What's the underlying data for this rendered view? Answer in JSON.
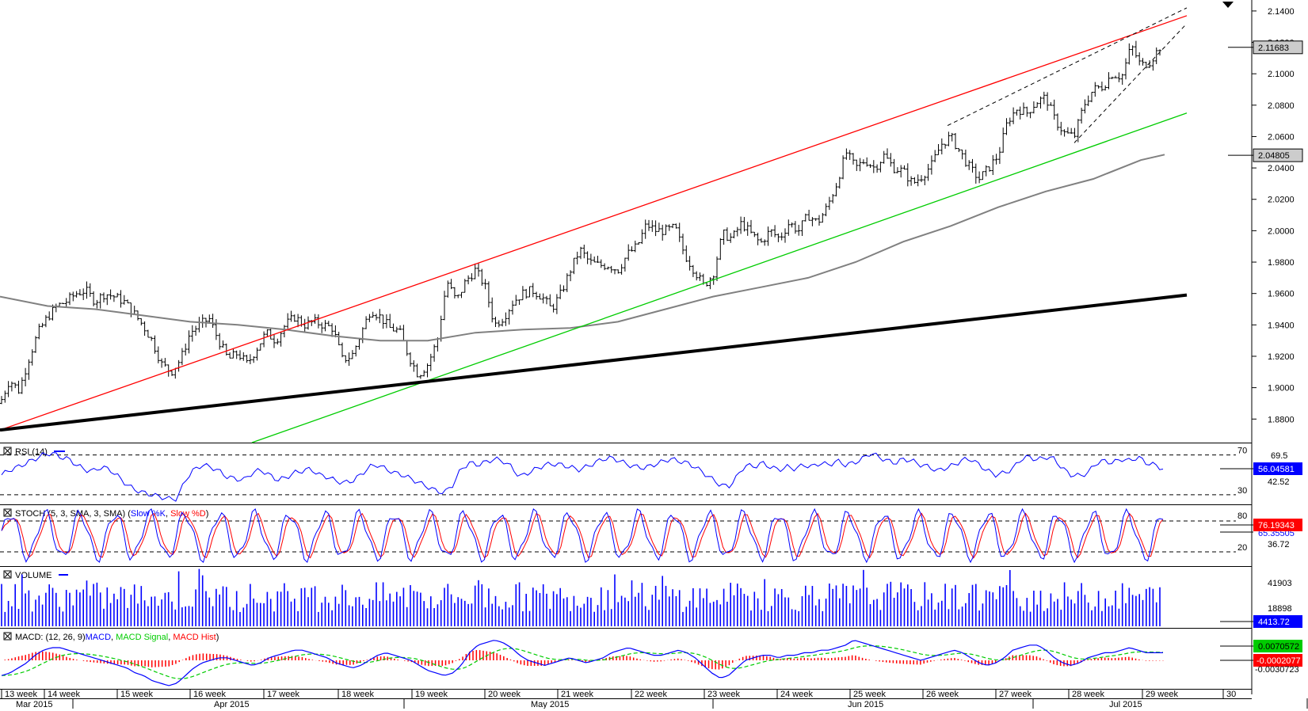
{
  "chart_data": [
    {
      "panel": "price",
      "type": "candlestick",
      "ylim": [
        1.865,
        2.147
      ],
      "y_ticks": [
        "2.1400",
        "2.1200",
        "2.1000",
        "2.0800",
        "2.0600",
        "2.0400",
        "2.0200",
        "2.0000",
        "1.9800",
        "1.9600",
        "1.9400",
        "1.9200",
        "1.9000",
        "1.8800"
      ],
      "y_tick_values": [
        2.14,
        2.12,
        2.1,
        2.08,
        2.06,
        2.04,
        2.02,
        2.0,
        1.98,
        1.96,
        1.94,
        1.92,
        1.9,
        1.88
      ],
      "price_box": {
        "value": "2.11683",
        "color": "#cccccc"
      },
      "ma_box": {
        "value": "2.04805",
        "color": "#cccccc"
      },
      "close_path": [
        [
          0,
          1.89
        ],
        [
          12,
          1.905
        ],
        [
          24,
          1.898
        ],
        [
          36,
          1.918
        ],
        [
          48,
          1.935
        ],
        [
          60,
          1.945
        ],
        [
          72,
          1.952
        ],
        [
          84,
          1.955
        ],
        [
          96,
          1.96
        ],
        [
          108,
          1.962
        ],
        [
          120,
          1.955
        ],
        [
          132,
          1.96
        ],
        [
          144,
          1.958
        ],
        [
          156,
          1.955
        ],
        [
          168,
          1.948
        ],
        [
          180,
          1.94
        ],
        [
          192,
          1.93
        ],
        [
          204,
          1.915
        ],
        [
          216,
          1.91
        ],
        [
          228,
          1.918
        ],
        [
          240,
          1.935
        ],
        [
          252,
          1.94
        ],
        [
          264,
          1.944
        ],
        [
          276,
          1.93
        ],
        [
          288,
          1.918
        ],
        [
          300,
          1.922
        ],
        [
          312,
          1.915
        ],
        [
          324,
          1.925
        ],
        [
          336,
          1.935
        ],
        [
          348,
          1.93
        ],
        [
          360,
          1.94
        ],
        [
          372,
          1.945
        ],
        [
          384,
          1.94
        ],
        [
          396,
          1.942
        ],
        [
          408,
          1.94
        ],
        [
          420,
          1.938
        ],
        [
          432,
          1.918
        ],
        [
          444,
          1.92
        ],
        [
          456,
          1.935
        ],
        [
          468,
          1.95
        ],
        [
          480,
          1.945
        ],
        [
          492,
          1.938
        ],
        [
          504,
          1.936
        ],
        [
          516,
          1.92
        ],
        [
          528,
          1.908
        ],
        [
          540,
          1.915
        ],
        [
          552,
          1.93
        ],
        [
          564,
          1.968
        ],
        [
          576,
          1.955
        ],
        [
          588,
          1.968
        ],
        [
          600,
          1.975
        ],
        [
          612,
          1.965
        ],
        [
          624,
          1.94
        ],
        [
          636,
          1.945
        ],
        [
          648,
          1.955
        ],
        [
          660,
          1.96
        ],
        [
          672,
          1.962
        ],
        [
          684,
          1.958
        ],
        [
          696,
          1.95
        ],
        [
          708,
          1.96
        ],
        [
          720,
          1.975
        ],
        [
          732,
          1.988
        ],
        [
          744,
          1.98
        ],
        [
          756,
          1.978
        ],
        [
          768,
          1.978
        ],
        [
          780,
          1.975
        ],
        [
          792,
          1.985
        ],
        [
          804,
          1.99
        ],
        [
          816,
          2.004
        ],
        [
          828,
          2.0
        ],
        [
          840,
          2.0
        ],
        [
          852,
          2.002
        ],
        [
          864,
          1.985
        ],
        [
          876,
          1.975
        ],
        [
          888,
          1.965
        ],
        [
          900,
          1.972
        ],
        [
          912,
          1.998
        ],
        [
          924,
          1.995
        ],
        [
          936,
          2.005
        ],
        [
          948,
          1.998
        ],
        [
          960,
          1.992
        ],
        [
          972,
          2.0
        ],
        [
          984,
          1.995
        ],
        [
          996,
          2.005
        ],
        [
          1008,
          2.0
        ],
        [
          1020,
          2.01
        ],
        [
          1032,
          2.005
        ],
        [
          1044,
          2.015
        ],
        [
          1056,
          2.03
        ],
        [
          1068,
          2.05
        ],
        [
          1080,
          2.04
        ],
        [
          1092,
          2.045
        ],
        [
          1104,
          2.04
        ],
        [
          1116,
          2.048
        ],
        [
          1128,
          2.04
        ],
        [
          1140,
          2.038
        ],
        [
          1152,
          2.03
        ],
        [
          1164,
          2.035
        ],
        [
          1176,
          2.042
        ],
        [
          1188,
          2.055
        ],
        [
          1200,
          2.06
        ],
        [
          1212,
          2.05
        ],
        [
          1224,
          2.04
        ],
        [
          1236,
          2.033
        ],
        [
          1248,
          2.04
        ],
        [
          1260,
          2.048
        ],
        [
          1272,
          2.07
        ],
        [
          1284,
          2.078
        ],
        [
          1296,
          2.075
        ],
        [
          1308,
          2.082
        ],
        [
          1320,
          2.085
        ],
        [
          1332,
          2.07
        ],
        [
          1344,
          2.062
        ],
        [
          1356,
          2.06
        ],
        [
          1368,
          2.08
        ],
        [
          1380,
          2.09
        ],
        [
          1392,
          2.092
        ],
        [
          1404,
          2.1
        ],
        [
          1416,
          2.098
        ],
        [
          1428,
          2.118
        ],
        [
          1440,
          2.105
        ],
        [
          1452,
          2.108
        ],
        [
          1464,
          2.117
        ]
      ],
      "ma_path": [
        [
          0,
          1.958
        ],
        [
          60,
          1.952
        ],
        [
          120,
          1.95
        ],
        [
          180,
          1.946
        ],
        [
          240,
          1.942
        ],
        [
          300,
          1.94
        ],
        [
          360,
          1.937
        ],
        [
          420,
          1.933
        ],
        [
          480,
          1.93
        ],
        [
          540,
          1.93
        ],
        [
          600,
          1.935
        ],
        [
          660,
          1.937
        ],
        [
          720,
          1.938
        ],
        [
          780,
          1.942
        ],
        [
          840,
          1.95
        ],
        [
          900,
          1.958
        ],
        [
          960,
          1.964
        ],
        [
          1020,
          1.97
        ],
        [
          1080,
          1.98
        ],
        [
          1140,
          1.993
        ],
        [
          1200,
          2.003
        ],
        [
          1260,
          2.015
        ],
        [
          1320,
          2.025
        ],
        [
          1380,
          2.033
        ],
        [
          1440,
          2.045
        ],
        [
          1470,
          2.0485
        ]
      ],
      "red_channel": [
        [
          0,
          1.873
        ],
        [
          1498,
          2.137
        ]
      ],
      "green_channel": [
        [
          318,
          1.865
        ],
        [
          1498,
          2.075
        ]
      ],
      "black_trend": [
        [
          0,
          1.873
        ],
        [
          1498,
          1.959
        ]
      ],
      "dashed_top": [
        [
          1196,
          2.067
        ],
        [
          1498,
          2.142
        ]
      ],
      "dashed_bottom": [
        [
          1356,
          2.056
        ],
        [
          1498,
          2.132
        ]
      ]
    },
    {
      "panel": "rsi",
      "title": "RSI (14)",
      "levels": [
        "70",
        "30"
      ],
      "level_values": [
        70,
        30
      ],
      "ylim": [
        22,
        80
      ],
      "right_labels": [
        "69.5",
        "42.52"
      ],
      "value_box": {
        "value": "56.04581",
        "color": "#0000ff"
      },
      "values": [
        50,
        55,
        58,
        62,
        66,
        70,
        72,
        68,
        66,
        60,
        55,
        54,
        58,
        55,
        48,
        40,
        35,
        32,
        30,
        28,
        26,
        26,
        45,
        55,
        60,
        58,
        54,
        48,
        46,
        45,
        52,
        55,
        50,
        45,
        47,
        52,
        54,
        56,
        50,
        48,
        44,
        42,
        44,
        50,
        58,
        60,
        56,
        52,
        50,
        46,
        42,
        38,
        34,
        32,
        40,
        56,
        62,
        60,
        63,
        66,
        64,
        58,
        48,
        52,
        56,
        60,
        61,
        60,
        58,
        55,
        58,
        62,
        66,
        67,
        64,
        60,
        58,
        57,
        60,
        63,
        66,
        64,
        62,
        58,
        52,
        46,
        40,
        38,
        48,
        60,
        58,
        62,
        58,
        55,
        58,
        56,
        60,
        58,
        62,
        60,
        64,
        60,
        62,
        66,
        72,
        68,
        64,
        62,
        66,
        64,
        60,
        58,
        54,
        57,
        60,
        65,
        66,
        60,
        54,
        50,
        52,
        56,
        66,
        68,
        65,
        68,
        66,
        56,
        50,
        49,
        52,
        62,
        64,
        62,
        66,
        64,
        68,
        62,
        60,
        56
      ]
    },
    {
      "panel": "stoch",
      "title": "STOCH (5, 3, SMA, 3, SMA)",
      "legend": [
        "Slow %K",
        "Slow %D"
      ],
      "levels": [
        "80",
        "20"
      ],
      "level_values": [
        80,
        20
      ],
      "ylim": [
        0,
        100
      ],
      "right_labels": [
        "36.72"
      ],
      "value_box": {
        "value": "76.19343",
        "color": "#ff0000"
      },
      "value_box_under": "65.35505"
    },
    {
      "panel": "volume",
      "title": "VOLUME",
      "right_labels": [
        "41903",
        "18898"
      ],
      "value_box": {
        "value": "4413.72",
        "color": "#0000ff"
      }
    },
    {
      "panel": "macd",
      "title": "MACD: (12, 26, 9)",
      "legend": [
        "MACD",
        "MACD Signal",
        "MACD Hist"
      ],
      "value_box_green": {
        "value": "0.0070572",
        "color": "#00cc00"
      },
      "value_box_red": {
        "value": "-0.0002077",
        "color": "#ff0000"
      },
      "right_labels": [
        "-0.0030723"
      ],
      "macd_values": [
        -6,
        -5,
        -3,
        -1,
        2,
        4,
        5,
        5,
        4,
        3,
        2,
        1,
        0,
        -1,
        -2,
        -3,
        -5,
        -6,
        -8,
        -9,
        -10,
        -9,
        -6,
        -3,
        -1,
        0,
        1,
        1,
        0,
        -1,
        -2,
        -1,
        1,
        2,
        3,
        4,
        4,
        3,
        2,
        1,
        -1,
        -2,
        -3,
        -2,
        0,
        2,
        3,
        2,
        1,
        0,
        -2,
        -4,
        -5,
        -6,
        -5,
        -2,
        3,
        6,
        7,
        8,
        7,
        5,
        2,
        0,
        -1,
        -2,
        -1,
        0,
        1,
        0,
        -1,
        0,
        1,
        3,
        4,
        5,
        4,
        3,
        2,
        2,
        3,
        4,
        3,
        1,
        -2,
        -5,
        -7,
        -6,
        -3,
        0,
        1,
        2,
        2,
        1,
        2,
        2,
        3,
        3,
        4,
        4,
        5,
        6,
        8,
        7,
        6,
        5,
        4,
        3,
        2,
        1,
        0,
        1,
        2,
        3,
        4,
        3,
        1,
        -1,
        -2,
        -1,
        1,
        4,
        5,
        6,
        6,
        4,
        1,
        -1,
        -2,
        -1,
        1,
        2,
        3,
        3,
        4,
        5,
        4,
        3,
        3,
        3
      ]
    }
  ],
  "x_axis": {
    "weeks": [
      "13 week",
      "14 week",
      "15 week",
      "16 week",
      "17 week",
      "18 week",
      "19 week",
      "20 week",
      "21 week",
      "22 week",
      "23 week",
      "24 week",
      "25 week",
      "26 week",
      "27 week",
      "28 week",
      "29 week",
      "30"
    ],
    "months": [
      "Mar 2015",
      "Apr 2015",
      "May 2015",
      "Jun 2015",
      "Jul 2015"
    ]
  }
}
